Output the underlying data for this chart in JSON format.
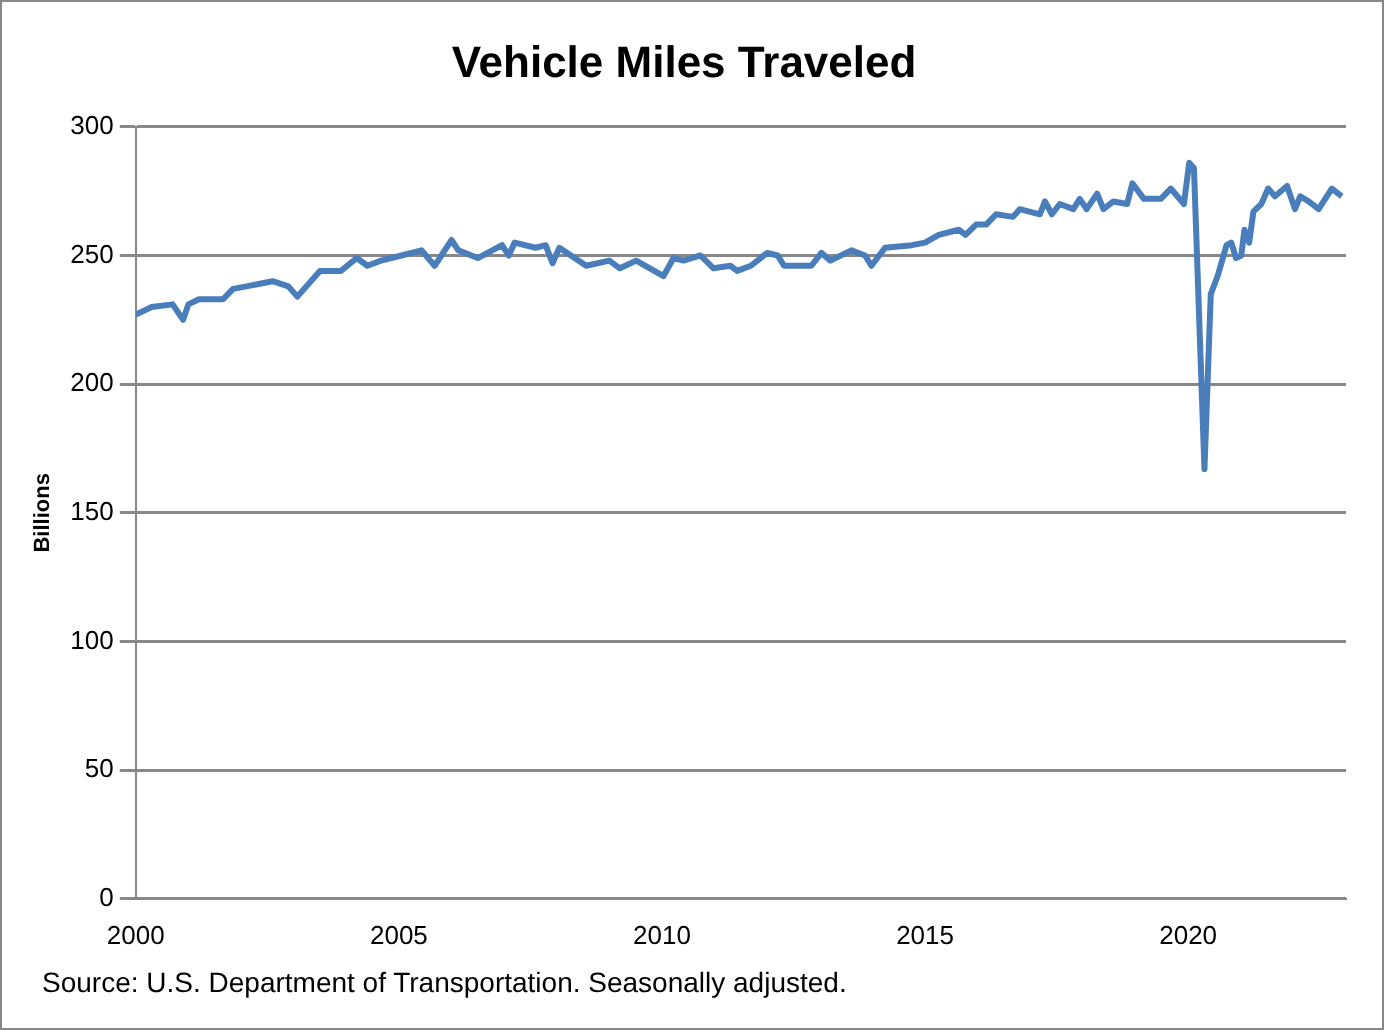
{
  "chart_data": {
    "type": "line",
    "title": "Vehicle Miles Traveled",
    "ylabel": "Billions",
    "annotations": [
      "Source: U.S. Department of Transportation. Seasonally adjusted."
    ],
    "series": [
      {
        "color": "#4a7ebb",
        "x": [
          2000.0,
          2000.3,
          2000.7,
          2000.9,
          2001.0,
          2001.2,
          2001.66,
          2001.85,
          2002.1,
          2002.6,
          2002.9,
          2003.07,
          2003.5,
          2003.9,
          2004.2,
          2004.4,
          2004.66,
          2005.05,
          2005.43,
          2005.68,
          2006.0,
          2006.13,
          2006.5,
          2006.96,
          2007.09,
          2007.2,
          2007.6,
          2007.79,
          2007.92,
          2008.05,
          2008.56,
          2009.0,
          2009.2,
          2009.51,
          2010.03,
          2010.22,
          2010.41,
          2010.73,
          2010.98,
          2011.3,
          2011.43,
          2011.69,
          2012.0,
          2012.2,
          2012.32,
          2012.58,
          2012.84,
          2013.03,
          2013.2,
          2013.6,
          2013.86,
          2013.98,
          2014.24,
          2014.75,
          2015.0,
          2015.26,
          2015.64,
          2015.77,
          2015.97,
          2016.16,
          2016.35,
          2016.67,
          2016.8,
          2017.18,
          2017.28,
          2017.41,
          2017.56,
          2017.82,
          2017.94,
          2018.07,
          2018.27,
          2018.39,
          2018.58,
          2018.84,
          2018.94,
          2019.16,
          2019.48,
          2019.67,
          2019.92,
          2020.02,
          2020.11,
          2020.31,
          2020.43,
          2020.56,
          2020.73,
          2020.82,
          2020.91,
          2021.01,
          2021.07,
          2021.16,
          2021.24,
          2021.39,
          2021.52,
          2021.65,
          2021.88,
          2022.03,
          2022.13,
          2022.29,
          2022.48,
          2022.73,
          2022.92
        ],
        "values": [
          227,
          230,
          231,
          225,
          231,
          233,
          233,
          237,
          238,
          240,
          238,
          234,
          244,
          244,
          249,
          246,
          248,
          250,
          252,
          246,
          256,
          252,
          249,
          254,
          250,
          255,
          253,
          254,
          247,
          253,
          246,
          248,
          245,
          248,
          242,
          249,
          248,
          250,
          245,
          246,
          244,
          246,
          251,
          250,
          246,
          246,
          246,
          251,
          248,
          252,
          250,
          246,
          253,
          254,
          255,
          258,
          260,
          258,
          262,
          262,
          266,
          265,
          268,
          266,
          271,
          266,
          270,
          268,
          272,
          268,
          274,
          268,
          271,
          270,
          278,
          272,
          272,
          276,
          270,
          286,
          284,
          167,
          235,
          242,
          254,
          255,
          249,
          250,
          260,
          255,
          267,
          270,
          276,
          273,
          277,
          268,
          273,
          271,
          268,
          276,
          273
        ]
      }
    ],
    "xlim": [
      2000,
      2023
    ],
    "xticks": [
      2000,
      2005,
      2010,
      2015,
      2020
    ],
    "ylim": [
      0,
      300
    ],
    "yticks": [
      0,
      50,
      100,
      150,
      200,
      250,
      300
    ],
    "grid": "y",
    "legend": false,
    "marker": "none",
    "line_style": "solid"
  }
}
